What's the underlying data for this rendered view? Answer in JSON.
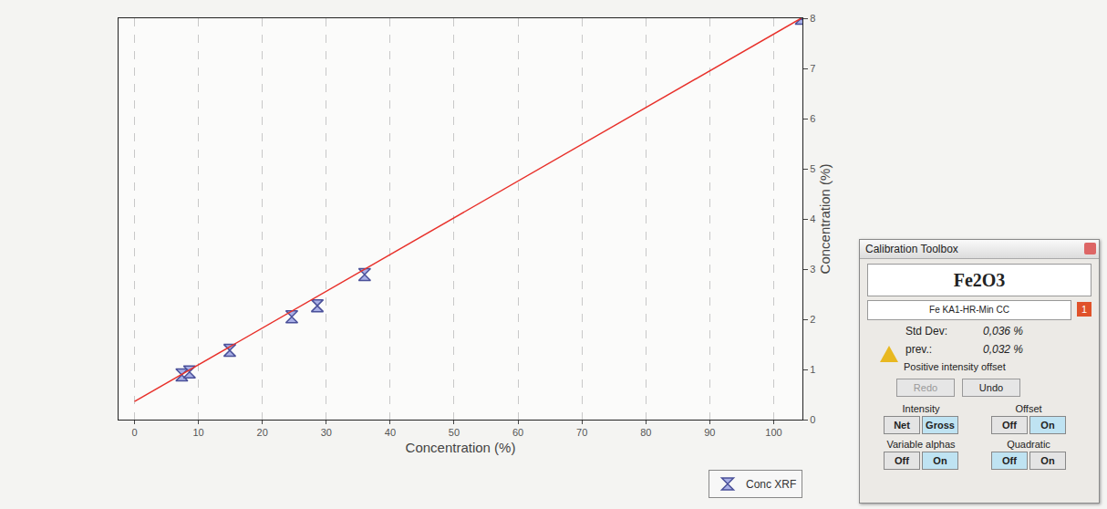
{
  "chart_data": {
    "type": "scatter",
    "x_label": "Concentration (%)",
    "y_label": "Concentration (%)",
    "xlim": [
      -2.5,
      104.5
    ],
    "xticks": [
      0,
      10,
      20,
      30,
      40,
      50,
      60,
      70,
      80,
      90,
      100
    ],
    "ylim": [
      0,
      8
    ],
    "yticks": [
      0,
      1,
      2,
      3,
      4,
      5,
      6,
      7,
      8
    ],
    "grid": "x",
    "legend": "bottom right",
    "series": [
      {
        "name": "Conc XRF",
        "type": "scatter",
        "marker": "hourglass",
        "color": "#4a5099",
        "x": [
          7.4,
          8.6,
          14.9,
          24.6,
          28.6,
          36.0,
          104.3
        ],
        "values": [
          0.89,
          0.95,
          1.38,
          2.05,
          2.27,
          2.89,
          8.0
        ]
      },
      {
        "type": "line",
        "line_style": "solid",
        "color": "#e8302a",
        "x": [
          0,
          104.3
        ],
        "values": [
          0.36,
          8.0
        ]
      }
    ]
  },
  "panel": {
    "title": "Calibration Toolbox",
    "compound": "Fe2O3",
    "line": "Fe KA1-HR-Min CC",
    "badge": "1",
    "std_dev": {
      "label": "Std Dev:",
      "value": "0,036 %"
    },
    "prev": {
      "label": "prev.:",
      "value": "0,032 %"
    },
    "warning": "Positive intensity offset",
    "buttons": [
      {
        "label": "Redo",
        "enabled": false
      },
      {
        "label": "Undo",
        "enabled": true
      }
    ],
    "toggles": [
      {
        "label": "Intensity",
        "options": [
          "Net",
          "Gross"
        ],
        "selected": "Gross"
      },
      {
        "label": "Offset",
        "options": [
          "Off",
          "On"
        ],
        "selected": "On"
      },
      {
        "label": "Variable alphas",
        "options": [
          "Off",
          "On"
        ],
        "selected": "On"
      },
      {
        "label": "Quadratic",
        "options": [
          "Off",
          "On"
        ],
        "selected": "Off"
      }
    ]
  }
}
